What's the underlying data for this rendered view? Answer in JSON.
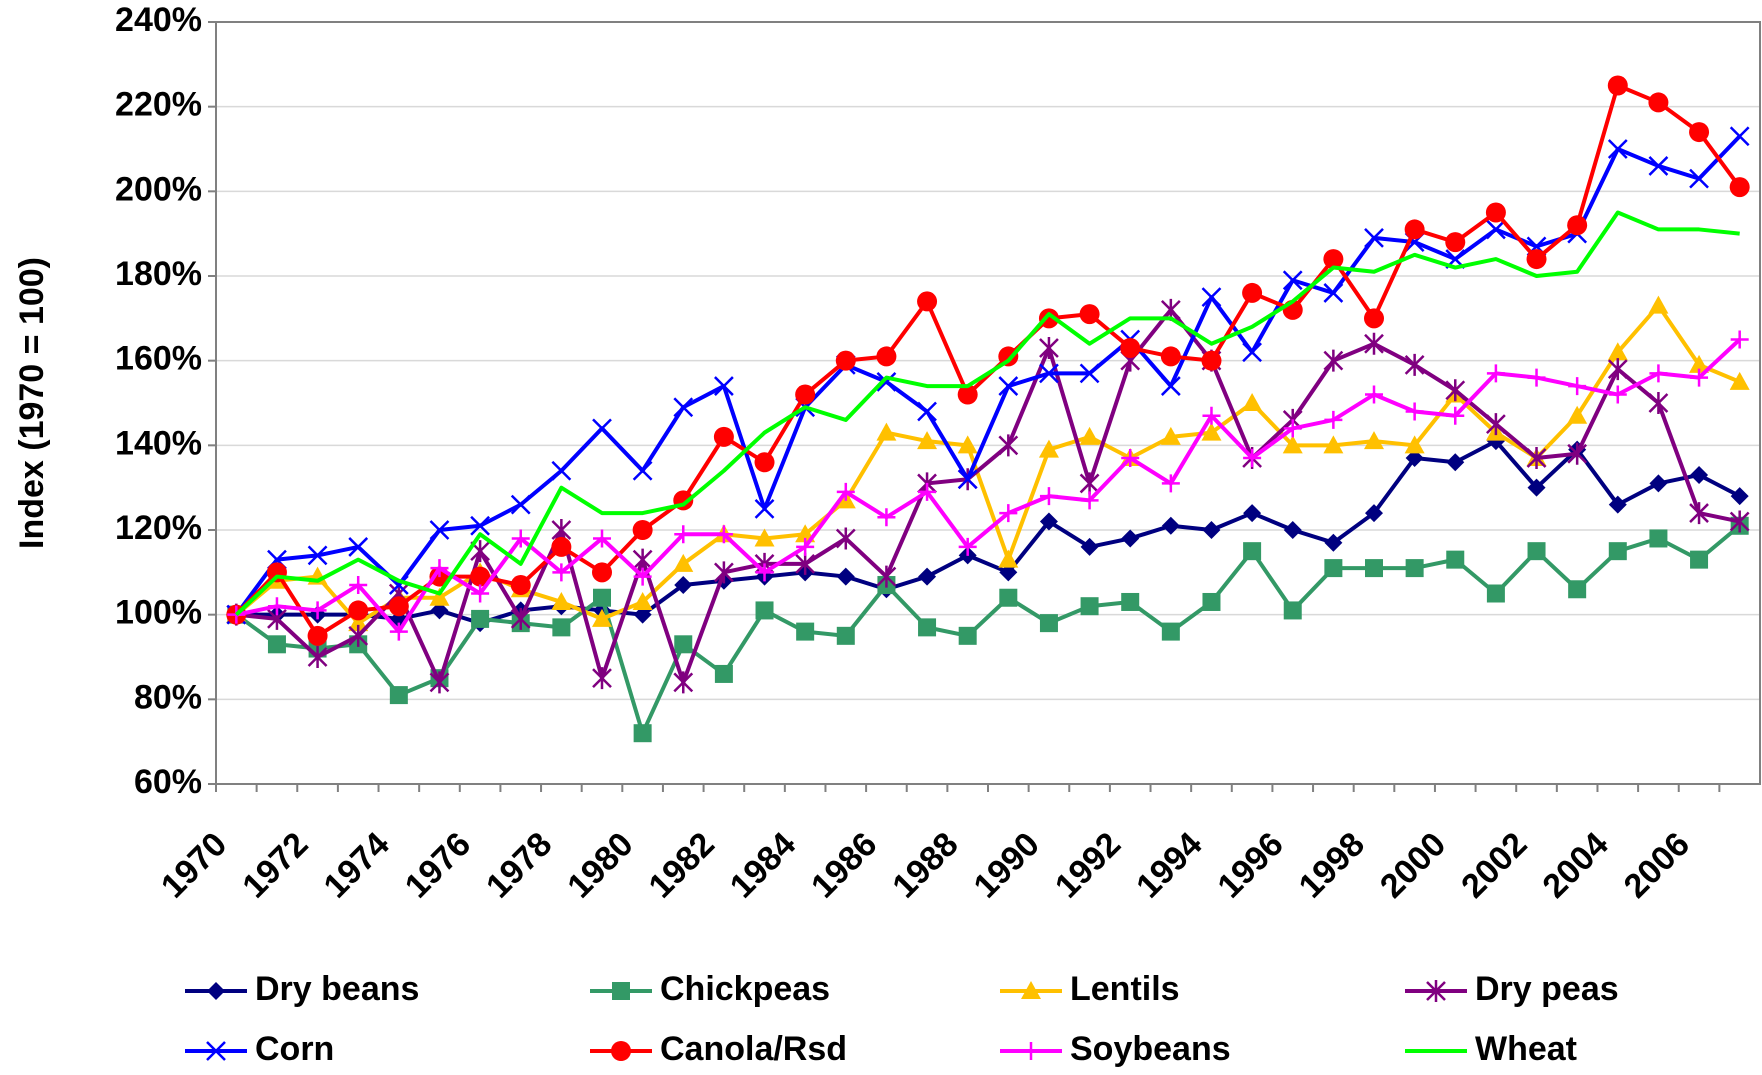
{
  "chart_data": {
    "type": "line",
    "y_label": "Index (1970 = 100)",
    "categories": [
      "1970",
      null,
      "1972",
      null,
      "1974",
      null,
      "1976",
      null,
      "1978",
      null,
      "1980",
      null,
      "1982",
      null,
      "1984",
      null,
      "1986",
      null,
      "1988",
      null,
      "1990",
      null,
      "1992",
      null,
      "1994",
      null,
      "1996",
      null,
      "1998",
      null,
      "2000",
      null,
      "2002",
      null,
      "2004",
      null,
      "2006",
      null
    ],
    "ylim": [
      60,
      240
    ],
    "yticks": [
      {
        "value": 60,
        "label": "60%"
      },
      {
        "value": 80,
        "label": "80%"
      },
      {
        "value": 100,
        "label": "100%"
      },
      {
        "value": 120,
        "label": "120%"
      },
      {
        "value": 140,
        "label": "140%"
      },
      {
        "value": 160,
        "label": "160%"
      },
      {
        "value": 180,
        "label": "180%"
      },
      {
        "value": 200,
        "label": "200%"
      },
      {
        "value": 220,
        "label": "220%"
      },
      {
        "value": 240,
        "label": "240%"
      }
    ],
    "grid": true,
    "legend": "bottom",
    "series": [
      {
        "name": "Dry beans",
        "color": "#000080",
        "marker": "diamond",
        "values": [
          100,
          100,
          100,
          100,
          99,
          101,
          98,
          101,
          102,
          101,
          100,
          107,
          108,
          109,
          110,
          109,
          106,
          109,
          114,
          110,
          122,
          116,
          118,
          121,
          120,
          124,
          120,
          117,
          124,
          137,
          136,
          141,
          130,
          139,
          126,
          131,
          133,
          128
        ]
      },
      {
        "name": "Chickpeas",
        "color": "#339966",
        "marker": "square",
        "values": [
          100,
          93,
          92,
          93,
          81,
          85,
          99,
          98,
          97,
          104,
          72,
          93,
          86,
          101,
          96,
          95,
          107,
          97,
          95,
          104,
          98,
          102,
          103,
          96,
          103,
          115,
          101,
          111,
          111,
          111,
          113,
          105,
          115,
          106,
          115,
          118,
          113,
          121
        ]
      },
      {
        "name": "Lentils",
        "color": "#ffc000",
        "marker": "triangle",
        "values": [
          100,
          108,
          109,
          98,
          104,
          104,
          110,
          106,
          103,
          99,
          103,
          112,
          119,
          118,
          119,
          127,
          143,
          141,
          140,
          113,
          139,
          142,
          137,
          142,
          143,
          150,
          140,
          140,
          141,
          140,
          152,
          143,
          137,
          147,
          162,
          173,
          159,
          155
        ]
      },
      {
        "name": "Dry peas",
        "color": "#800080",
        "marker": "star",
        "values": [
          100,
          99,
          90,
          95,
          105,
          84,
          115,
          99,
          120,
          85,
          113,
          84,
          110,
          112,
          112,
          118,
          109,
          131,
          132,
          140,
          163,
          131,
          160,
          172,
          160,
          137,
          146,
          160,
          164,
          159,
          153,
          145,
          137,
          138,
          158,
          150,
          124,
          122
        ]
      },
      {
        "name": "Corn",
        "color": "#0000ff",
        "marker": "x",
        "values": [
          100,
          113,
          114,
          116,
          107,
          120,
          121,
          126,
          134,
          144,
          134,
          149,
          154,
          125,
          149,
          159,
          155,
          148,
          132,
          154,
          157,
          157,
          165,
          154,
          175,
          162,
          179,
          176,
          189,
          188,
          184,
          191,
          187,
          190,
          210,
          206,
          203,
          213
        ]
      },
      {
        "name": "Canola/Rsd",
        "color": "#ff0000",
        "marker": "circle",
        "values": [
          100,
          110,
          95,
          101,
          102,
          109,
          109,
          107,
          116,
          110,
          120,
          127,
          142,
          136,
          152,
          160,
          161,
          174,
          152,
          161,
          170,
          171,
          163,
          161,
          160,
          176,
          172,
          184,
          170,
          191,
          188,
          195,
          184,
          192,
          225,
          221,
          214,
          201
        ]
      },
      {
        "name": "Soybeans",
        "color": "#ff00ff",
        "marker": "plus",
        "values": [
          100,
          102,
          101,
          107,
          96,
          111,
          105,
          118,
          110,
          118,
          109,
          119,
          119,
          110,
          116,
          129,
          123,
          129,
          116,
          124,
          128,
          127,
          137,
          131,
          147,
          137,
          144,
          146,
          152,
          148,
          147,
          157,
          156,
          154,
          152,
          157,
          156,
          165
        ]
      },
      {
        "name": "Wheat",
        "color": "#00ff00",
        "marker": "none",
        "values": [
          100,
          109,
          108,
          113,
          108,
          105,
          119,
          112,
          130,
          124,
          124,
          126,
          134,
          143,
          149,
          146,
          156,
          154,
          154,
          160,
          171,
          164,
          170,
          170,
          164,
          168,
          174,
          182,
          181,
          185,
          182,
          184,
          180,
          181,
          195,
          191,
          191,
          190
        ]
      }
    ]
  }
}
